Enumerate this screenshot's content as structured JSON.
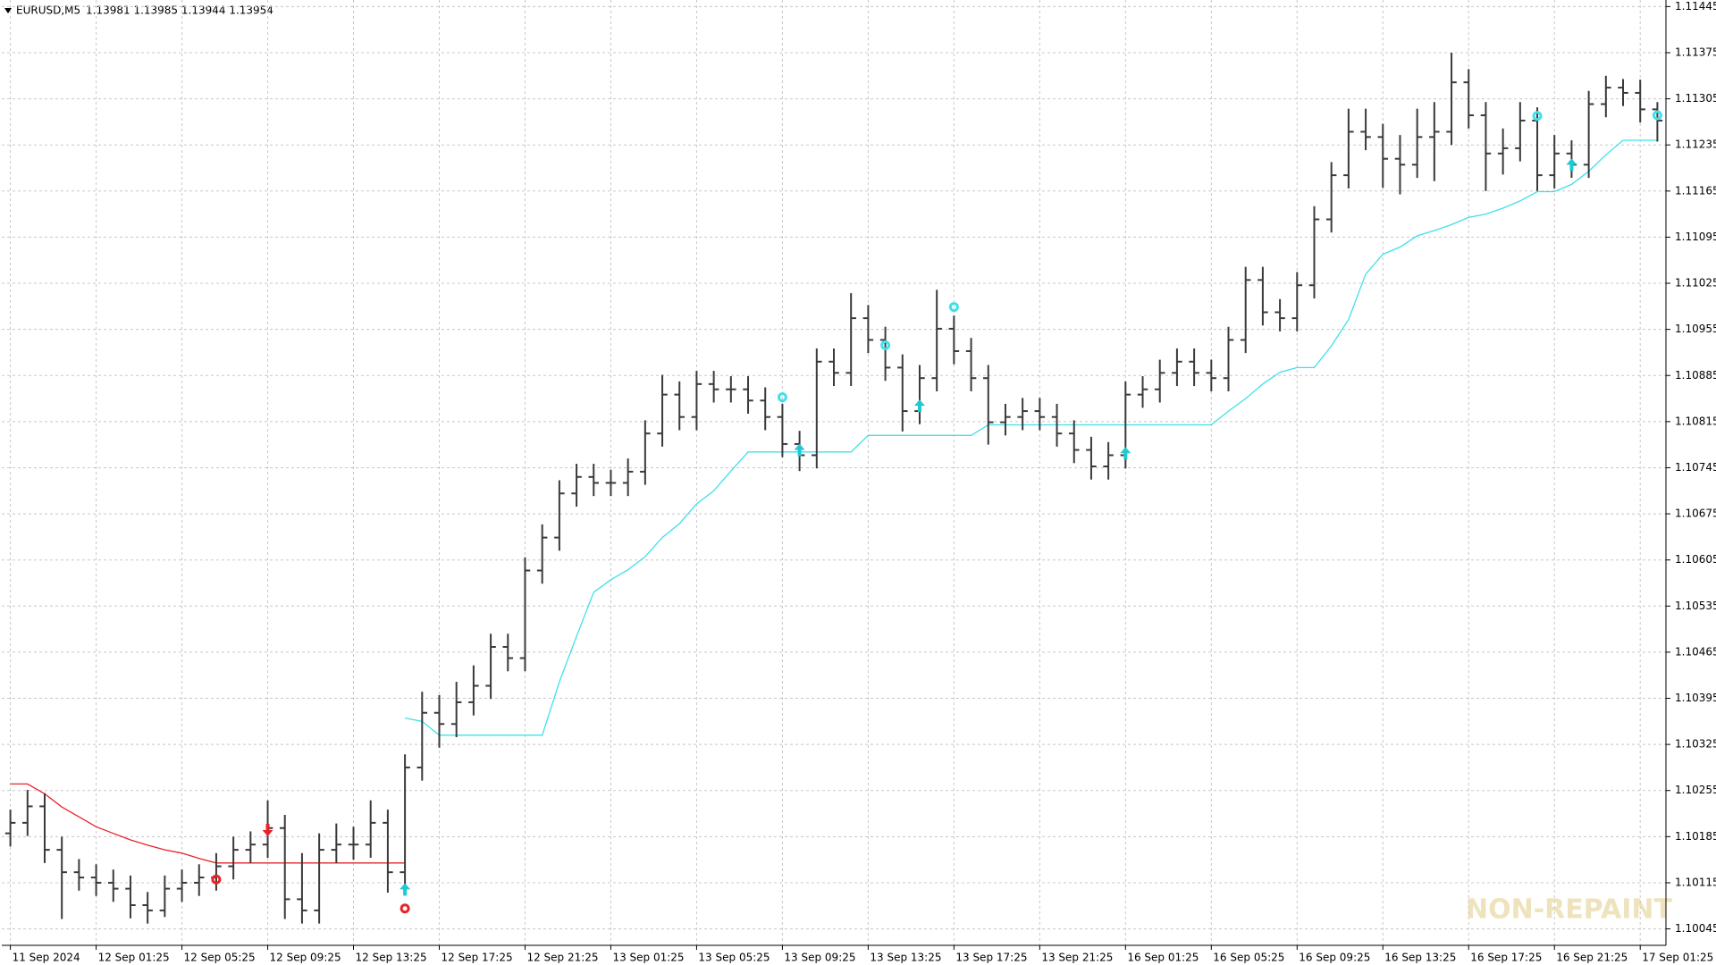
{
  "chart_data": {
    "type": "ohlc",
    "symbol": "EURUSD,M5",
    "quote": "1.13981 1.13985 1.13944 1.13954",
    "watermark": "NON-REPAINT",
    "categories": [
      "11 Sep 2024",
      null,
      null,
      null,
      null,
      "12 Sep 01:25",
      null,
      null,
      null,
      null,
      "12 Sep 05:25",
      null,
      null,
      null,
      null,
      "12 Sep 09:25",
      null,
      null,
      null,
      null,
      "12 Sep 13:25",
      null,
      null,
      null,
      null,
      "12 Sep 17:25",
      null,
      null,
      null,
      null,
      "12 Sep 21:25",
      null,
      null,
      null,
      null,
      "13 Sep 01:25",
      null,
      null,
      null,
      null,
      "13 Sep 05:25",
      null,
      null,
      null,
      null,
      "13 Sep 09:25",
      null,
      null,
      null,
      null,
      "13 Sep 13:25",
      null,
      null,
      null,
      null,
      "13 Sep 17:25",
      null,
      null,
      null,
      null,
      "13 Sep 21:25",
      null,
      null,
      null,
      null,
      "16 Sep 01:25",
      null,
      null,
      null,
      null,
      "16 Sep 05:25",
      null,
      null,
      null,
      null,
      "16 Sep 09:25",
      null,
      null,
      null,
      null,
      "16 Sep 13:25",
      null,
      null,
      null,
      null,
      "16 Sep 17:25",
      null,
      null,
      null,
      null,
      "16 Sep 21:25",
      null,
      null,
      null,
      null,
      "17 Sep 01:25",
      null
    ],
    "color": "#3a3a3a",
    "open": [
      1.1019,
      1.10206,
      1.10231,
      1.10165,
      1.10131,
      1.10123,
      1.10115,
      1.10106,
      1.10081,
      1.10073,
      1.10106,
      1.10115,
      1.10123,
      1.1014,
      1.10165,
      1.10173,
      1.10198,
      1.1009,
      1.10073,
      1.10165,
      1.10173,
      1.10173,
      1.10206,
      1.10131,
      1.1029,
      1.10373,
      1.10356,
      1.10389,
      1.10414,
      1.10473,
      1.10456,
      1.10589,
      1.10639,
      1.10706,
      1.10731,
      1.10722,
      1.10722,
      1.10739,
      1.10797,
      1.10856,
      1.10822,
      1.10872,
      1.10864,
      1.10864,
      1.10847,
      1.10822,
      1.10781,
      1.10764,
      1.10906,
      1.10889,
      1.10972,
      1.10939,
      1.10897,
      1.10831,
      1.10881,
      1.10956,
      1.10922,
      1.10881,
      1.10814,
      1.10822,
      1.10831,
      1.10822,
      1.10797,
      1.10772,
      1.10747,
      1.10764,
      1.10856,
      1.10864,
      1.10889,
      1.10906,
      1.10889,
      1.10881,
      1.10939,
      1.1103,
      1.10981,
      1.10972,
      1.11022,
      1.11122,
      1.11189,
      1.11255,
      1.11247,
      1.11214,
      1.11205,
      1.11247,
      1.11255,
      1.1133,
      1.1128,
      1.11222,
      1.1123,
      1.11272,
      1.11189,
      1.11222,
      1.11205,
      1.11297,
      1.11322,
      1.11314,
      1.11289
    ],
    "high": [
      1.10226,
      1.10256,
      1.10251,
      1.10185,
      1.10151,
      1.10143,
      1.10135,
      1.10126,
      1.10101,
      1.10126,
      1.10135,
      1.10143,
      1.1016,
      1.10185,
      1.10193,
      1.1024,
      1.10218,
      1.1016,
      1.1019,
      1.10205,
      1.102,
      1.1024,
      1.10226,
      1.1031,
      1.10405,
      1.104,
      1.1042,
      1.10445,
      1.10493,
      1.10493,
      1.10609,
      1.10659,
      1.10726,
      1.10751,
      1.10751,
      1.10742,
      1.10759,
      1.10817,
      1.10886,
      1.10876,
      1.10892,
      1.10892,
      1.10884,
      1.10884,
      1.10867,
      1.10842,
      1.10801,
      1.10926,
      1.10926,
      1.1101,
      1.10992,
      1.10959,
      1.10917,
      1.10901,
      1.11015,
      1.10976,
      1.10942,
      1.10901,
      1.10842,
      1.10851,
      1.10851,
      1.10842,
      1.10817,
      1.10792,
      1.10784,
      1.10876,
      1.10884,
      1.10909,
      1.10926,
      1.10926,
      1.10909,
      1.10959,
      1.1105,
      1.1105,
      1.11001,
      1.11042,
      1.11142,
      1.11209,
      1.1129,
      1.1129,
      1.11267,
      1.1125,
      1.1129,
      1.113,
      1.11375,
      1.1135,
      1.113,
      1.1126,
      1.113,
      1.11292,
      1.1125,
      1.11242,
      1.11317,
      1.1134,
      1.11335,
      1.11334,
      1.113
    ],
    "low": [
      1.1017,
      1.10186,
      1.10145,
      1.1006,
      1.10103,
      1.10095,
      1.10086,
      1.10061,
      1.10053,
      1.10063,
      1.10086,
      1.10095,
      1.10103,
      1.1012,
      1.10145,
      1.10153,
      1.1006,
      1.10053,
      1.10053,
      1.10145,
      1.1015,
      1.10153,
      1.101,
      1.10111,
      1.1027,
      1.1032,
      1.10336,
      1.10369,
      1.10394,
      1.10436,
      1.10436,
      1.10569,
      1.10619,
      1.10686,
      1.10702,
      1.10702,
      1.10702,
      1.10719,
      1.10777,
      1.10802,
      1.10802,
      1.10844,
      1.10844,
      1.10827,
      1.10802,
      1.10761,
      1.1074,
      1.10744,
      1.10869,
      1.10869,
      1.10919,
      1.10877,
      1.108,
      1.10811,
      1.10861,
      1.10902,
      1.10861,
      1.1078,
      1.10794,
      1.10802,
      1.10802,
      1.10777,
      1.10752,
      1.10727,
      1.10727,
      1.10744,
      1.10836,
      1.10844,
      1.10869,
      1.10869,
      1.10861,
      1.10861,
      1.10919,
      1.10961,
      1.10952,
      1.10952,
      1.11002,
      1.11102,
      1.11169,
      1.11227,
      1.1117,
      1.1116,
      1.11185,
      1.1118,
      1.11235,
      1.1126,
      1.11165,
      1.1119,
      1.1121,
      1.11165,
      1.11169,
      1.11185,
      1.11185,
      1.11277,
      1.11294,
      1.11269,
      1.1124
    ],
    "close": [
      1.10206,
      1.10231,
      1.10165,
      1.10131,
      1.10123,
      1.10115,
      1.10106,
      1.10081,
      1.10073,
      1.10106,
      1.10115,
      1.10123,
      1.1014,
      1.10165,
      1.10173,
      1.10198,
      1.1009,
      1.10073,
      1.10165,
      1.10173,
      1.10173,
      1.10206,
      1.10131,
      1.1029,
      1.10373,
      1.10356,
      1.10389,
      1.10414,
      1.10473,
      1.10456,
      1.10589,
      1.10639,
      1.10706,
      1.10731,
      1.10722,
      1.10722,
      1.10739,
      1.10797,
      1.10856,
      1.10822,
      1.10872,
      1.10864,
      1.10864,
      1.10847,
      1.10822,
      1.10781,
      1.10764,
      1.10906,
      1.10889,
      1.10972,
      1.10939,
      1.10897,
      1.10831,
      1.10881,
      1.10956,
      1.10922,
      1.10881,
      1.10814,
      1.10822,
      1.10831,
      1.10822,
      1.10797,
      1.10772,
      1.10747,
      1.10764,
      1.10856,
      1.10864,
      1.10889,
      1.10906,
      1.10889,
      1.10881,
      1.10939,
      1.1103,
      1.10981,
      1.10972,
      1.11022,
      1.11122,
      1.11189,
      1.11255,
      1.11247,
      1.11214,
      1.11205,
      1.11247,
      1.11255,
      1.1133,
      1.1128,
      1.11222,
      1.1123,
      1.11272,
      1.11189,
      1.11222,
      1.11205,
      1.11297,
      1.11322,
      1.11314,
      1.11289,
      1.11272
    ],
    "lines": [
      {
        "color": "#e8232a",
        "values": [
          1.10265,
          1.10265,
          1.1025,
          1.1023,
          1.10215,
          1.102,
          1.1019,
          1.1018,
          1.10172,
          1.10165,
          1.1016,
          1.10152,
          1.10145,
          1.10145,
          1.10145,
          1.10145,
          1.10145,
          1.10145,
          1.10145,
          1.10145,
          1.10145,
          1.10145,
          1.10145,
          1.10145,
          null,
          null,
          null,
          null,
          null,
          null,
          null,
          null,
          null,
          null,
          null,
          null,
          null,
          null,
          null,
          null,
          null,
          null,
          null,
          null,
          null,
          null,
          null,
          null,
          null,
          null,
          null,
          null,
          null,
          null,
          null,
          null,
          null,
          null,
          null,
          null,
          null,
          null,
          null,
          null,
          null,
          null,
          null,
          null,
          null,
          null,
          null,
          null,
          null,
          null,
          null,
          null,
          null,
          null,
          null,
          null,
          null,
          null,
          null,
          null,
          null,
          null,
          null,
          null,
          null,
          null,
          null,
          null,
          null,
          null,
          null,
          null,
          null
        ]
      },
      {
        "color": "#3fe0ea",
        "values": [
          null,
          null,
          null,
          null,
          null,
          null,
          null,
          null,
          null,
          null,
          null,
          null,
          null,
          null,
          null,
          null,
          null,
          null,
          null,
          null,
          null,
          null,
          null,
          1.10365,
          1.1036,
          1.10339,
          1.10339,
          1.10339,
          1.10339,
          1.10339,
          1.10339,
          1.10339,
          1.1042,
          1.10489,
          1.10556,
          1.10575,
          1.1059,
          1.1061,
          1.10639,
          1.1066,
          1.1069,
          1.1071,
          1.1074,
          1.10769,
          1.10769,
          1.10769,
          1.10769,
          1.10769,
          1.10769,
          1.10769,
          1.10794,
          1.10794,
          1.10794,
          1.10794,
          1.10794,
          1.10794,
          1.10794,
          1.1081,
          1.1081,
          1.1081,
          1.1081,
          1.1081,
          1.1081,
          1.1081,
          1.1081,
          1.1081,
          1.1081,
          1.1081,
          1.1081,
          1.1081,
          1.1081,
          1.10831,
          1.1085,
          1.10872,
          1.1089,
          1.10897,
          1.10897,
          1.1093,
          1.1097,
          1.11039,
          1.11069,
          1.1108,
          1.11097,
          1.11105,
          1.11114,
          1.11125,
          1.1113,
          1.11139,
          1.1115,
          1.11164,
          1.11164,
          1.11175,
          1.11195,
          1.1122,
          1.11242,
          1.11242,
          1.11242
        ]
      }
    ],
    "signals": [
      {
        "type": "exit",
        "index": 12,
        "value": 1.1012,
        "color": "#e8232a"
      },
      {
        "type": "down",
        "index": 15,
        "value": 1.10195,
        "color": "#e8232a"
      },
      {
        "type": "exit",
        "index": 23,
        "value": 1.10076,
        "color": "#e8232a"
      },
      {
        "type": "up",
        "index": 23,
        "value": 1.10105,
        "color": "#20c8cf"
      },
      {
        "type": "exit",
        "index": 45,
        "value": 1.10852,
        "color": "#3fe0ea"
      },
      {
        "type": "up",
        "index": 46,
        "value": 1.10772,
        "color": "#20c8cf"
      },
      {
        "type": "exit",
        "index": 51,
        "value": 1.10931,
        "color": "#3fe0ea"
      },
      {
        "type": "up",
        "index": 53,
        "value": 1.10839,
        "color": "#20c8cf"
      },
      {
        "type": "exit",
        "index": 55,
        "value": 1.10989,
        "color": "#3fe0ea"
      },
      {
        "type": "up",
        "index": 65,
        "value": 1.10767,
        "color": "#20c8cf"
      },
      {
        "type": "exit",
        "index": 89,
        "value": 1.11279,
        "color": "#3fe0ea"
      },
      {
        "type": "up",
        "index": 91,
        "value": 1.11205,
        "color": "#20c8cf"
      },
      {
        "type": "exit",
        "index": 96,
        "value": 1.1128,
        "color": "#3fe0ea"
      }
    ],
    "ylim": [
      1.1002,
      1.11455
    ],
    "yticks": [
      1.11445,
      1.11375,
      1.11305,
      1.11235,
      1.11165,
      1.11095,
      1.11025,
      1.10955,
      1.10885,
      1.10815,
      1.10745,
      1.10675,
      1.10605,
      1.10535,
      1.10465,
      1.10395,
      1.10325,
      1.10255,
      1.10185,
      1.10115,
      1.10045
    ],
    "grid": true
  }
}
